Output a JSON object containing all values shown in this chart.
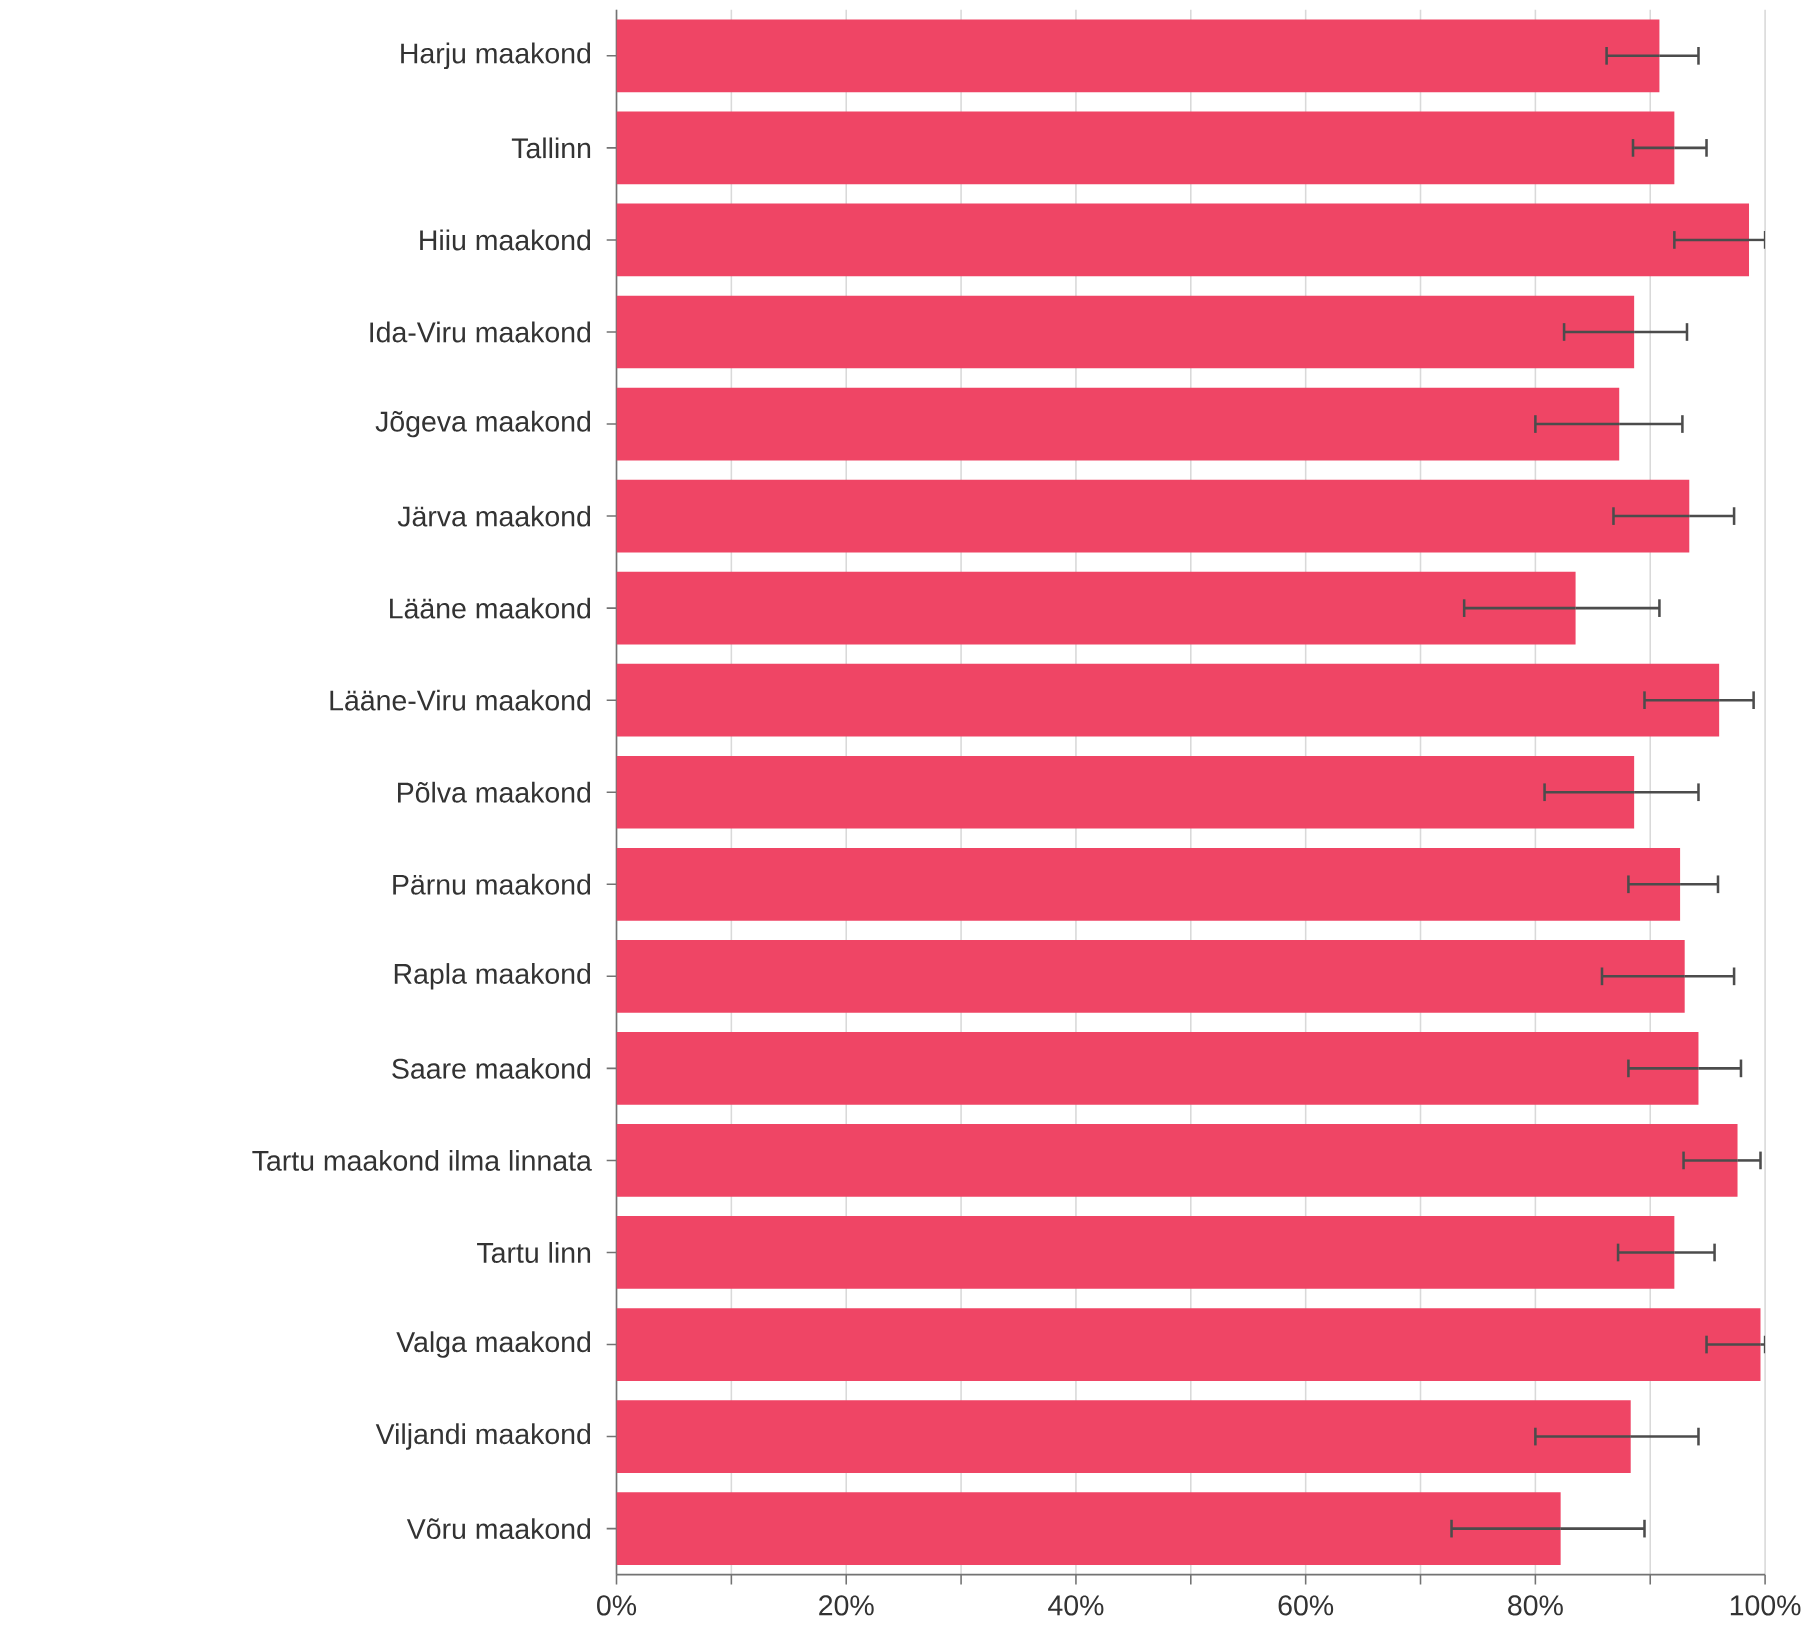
{
  "chart_data": {
    "type": "bar",
    "orientation": "horizontal",
    "categories": [
      "Harju maakond",
      "Tallinn",
      "Hiiu maakond",
      "Ida-Viru maakond",
      "Jõgeva maakond",
      "Järva maakond",
      "Lääne maakond",
      "Lääne-Viru maakond",
      "Põlva maakond",
      "Pärnu maakond",
      "Rapla maakond",
      "Saare maakond",
      "Tartu maakond ilma linnata",
      "Tartu linn",
      "Valga maakond",
      "Viljandi maakond",
      "Võru maakond"
    ],
    "values": [
      90.8,
      92.1,
      98.6,
      88.6,
      87.3,
      93.4,
      83.5,
      96.0,
      88.6,
      92.6,
      93.0,
      94.2,
      97.6,
      92.1,
      99.6,
      88.3,
      82.2
    ],
    "errors": [
      [
        86.2,
        94.2
      ],
      [
        88.5,
        94.9
      ],
      [
        92.1,
        100
      ],
      [
        82.5,
        93.2
      ],
      [
        80.0,
        92.8
      ],
      [
        86.8,
        97.3
      ],
      [
        73.8,
        90.8
      ],
      [
        89.5,
        99.0
      ],
      [
        80.8,
        94.2
      ],
      [
        88.1,
        95.9
      ],
      [
        85.8,
        97.3
      ],
      [
        88.1,
        97.9
      ],
      [
        92.9,
        99.6
      ],
      [
        87.2,
        95.6
      ],
      [
        94.9,
        100
      ],
      [
        80.0,
        94.2
      ],
      [
        72.7,
        89.5
      ]
    ],
    "color": "#ef4565",
    "xlim": [
      0,
      100
    ],
    "xticks": [
      {
        "value": 0,
        "label": "0%"
      },
      {
        "value": 10,
        "label": null
      },
      {
        "value": 20,
        "label": "20%"
      },
      {
        "value": 30,
        "label": null
      },
      {
        "value": 40,
        "label": "40%"
      },
      {
        "value": 50,
        "label": null
      },
      {
        "value": 60,
        "label": "60%"
      },
      {
        "value": 70,
        "label": null
      },
      {
        "value": 80,
        "label": "80%"
      },
      {
        "value": 90,
        "label": null
      },
      {
        "value": 100,
        "label": "100%"
      }
    ],
    "grid": "x"
  }
}
